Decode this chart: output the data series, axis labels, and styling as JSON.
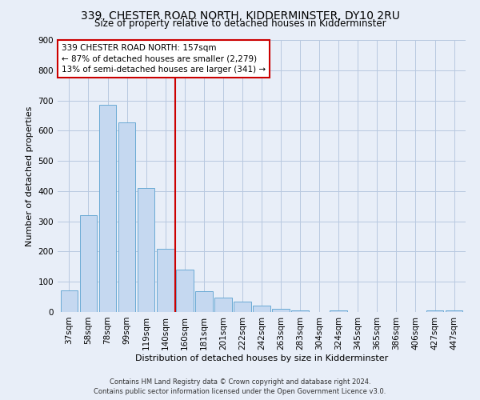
{
  "title": "339, CHESTER ROAD NORTH, KIDDERMINSTER, DY10 2RU",
  "subtitle": "Size of property relative to detached houses in Kidderminster",
  "xlabel": "Distribution of detached houses by size in Kidderminster",
  "ylabel": "Number of detached properties",
  "footer_line1": "Contains HM Land Registry data © Crown copyright and database right 2024.",
  "footer_line2": "Contains public sector information licensed under the Open Government Licence v3.0.",
  "bar_labels": [
    "37sqm",
    "58sqm",
    "78sqm",
    "99sqm",
    "119sqm",
    "140sqm",
    "160sqm",
    "181sqm",
    "201sqm",
    "222sqm",
    "242sqm",
    "263sqm",
    "283sqm",
    "304sqm",
    "324sqm",
    "345sqm",
    "365sqm",
    "386sqm",
    "406sqm",
    "427sqm",
    "447sqm"
  ],
  "bar_values": [
    72,
    320,
    686,
    627,
    410,
    210,
    140,
    69,
    48,
    34,
    22,
    11,
    4,
    0,
    4,
    0,
    0,
    0,
    0,
    4,
    4
  ],
  "bar_color": "#c5d8f0",
  "bar_edgecolor": "#6aaad4",
  "marker_label": "339 CHESTER ROAD NORTH: 157sqm",
  "annotation_line1": "← 87% of detached houses are smaller (2,279)",
  "annotation_line2": "13% of semi-detached houses are larger (341) →",
  "marker_color": "#cc0000",
  "ylim": [
    0,
    900
  ],
  "yticks": [
    0,
    100,
    200,
    300,
    400,
    500,
    600,
    700,
    800,
    900
  ],
  "bg_color": "#e8eef8",
  "plot_bg_color": "#e8eef8",
  "grid_color": "#b8c8e0",
  "title_fontsize": 10,
  "subtitle_fontsize": 8.5,
  "axis_label_fontsize": 8,
  "tick_fontsize": 7.5
}
